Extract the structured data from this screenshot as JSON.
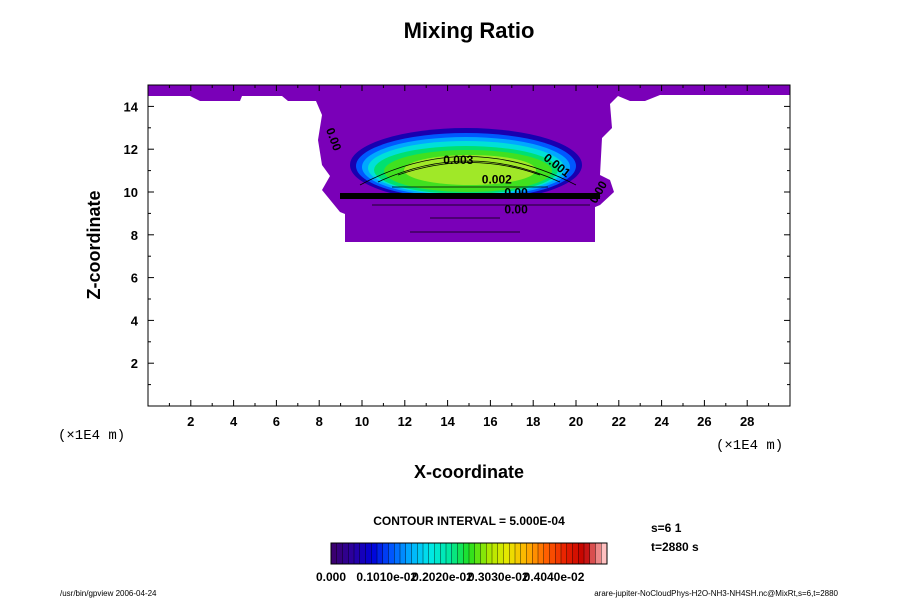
{
  "chart_data": {
    "type": "contour",
    "title": "Mixing Ratio",
    "xlabel": "X-coordinate",
    "ylabel": "Z-coordinate",
    "x_units": "(×1E4 m)",
    "y_units": "(×1E4 m)",
    "xlim": [
      0,
      30
    ],
    "ylim": [
      0,
      15
    ],
    "x_ticks": [
      "2",
      "4",
      "6",
      "8",
      "10",
      "12",
      "14",
      "16",
      "18",
      "20",
      "22",
      "24",
      "26",
      "28"
    ],
    "y_ticks": [
      "2",
      "4",
      "6",
      "8",
      "10",
      "12",
      "14"
    ],
    "contour_labels": [
      {
        "text": "0.003",
        "x": 14.5,
        "y": 11.3,
        "rotate": 0
      },
      {
        "text": "0.001",
        "x": 19.0,
        "y": 11.1,
        "rotate": 38
      },
      {
        "text": "0.002",
        "x": 16.3,
        "y": 10.4,
        "rotate": 0
      },
      {
        "text": "0.00",
        "x": 17.2,
        "y": 9.8,
        "rotate": 0
      },
      {
        "text": "0.00",
        "x": 17.2,
        "y": 9.0,
        "rotate": 0
      },
      {
        "text": "0.00",
        "x": 8.5,
        "y": 12.4,
        "rotate": 70
      },
      {
        "text": "0.00",
        "x": 21.2,
        "y": 9.9,
        "rotate": -60
      }
    ],
    "interval_text": "CONTOUR INTERVAL = 5.000E-04",
    "colorbar": {
      "min": 0.0,
      "max": 0.005,
      "tick_labels": [
        "0.000",
        "0.1010e-02",
        "0.2020e-02",
        "0.3030e-02",
        "0.4040e-02"
      ],
      "colors": [
        "#3a0070",
        "#2a00a0",
        "#0000d8",
        "#0058ff",
        "#00b0ff",
        "#00e8e8",
        "#00e8a0",
        "#20e020",
        "#a8e800",
        "#e8e800",
        "#ffb000",
        "#ff6000",
        "#e82000",
        "#c00000",
        "#ffc0c0"
      ]
    },
    "field_colors": {
      "outer": "#7a00b8",
      "band1": "#1800b0",
      "band2": "#0058ff",
      "band3": "#00a8ff",
      "band4": "#00e0d8",
      "band5": "#00e070",
      "band6": "#40e020",
      "core": "#a0e828"
    }
  },
  "info": {
    "s_label": "s=6 1",
    "t_label": "t=2880 s"
  },
  "footer": {
    "left": "/usr/bin/gpview 2006-04-24",
    "right": "arare-jupiter-NoCloudPhys-H2O-NH3-NH4SH.nc@MixRt,s=6,t=2880"
  }
}
